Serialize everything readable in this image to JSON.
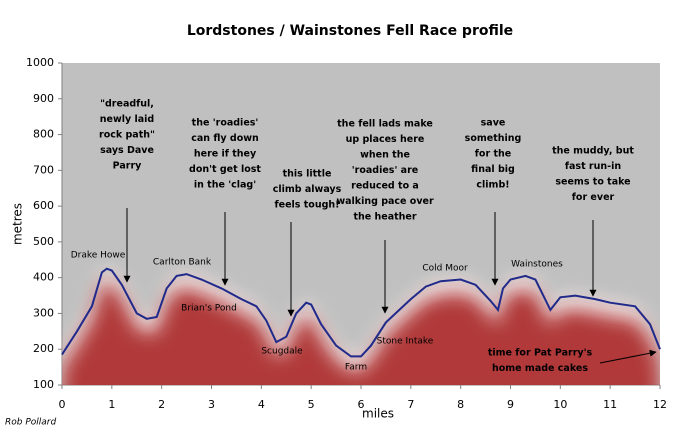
{
  "chart_data": {
    "type": "area",
    "title": "Lordstones / Wainstones Fell Race profile",
    "xlabel": "miles",
    "ylabel": "metres",
    "credit": "Rob Pollard",
    "x": [
      0,
      0.3,
      0.6,
      0.8,
      0.9,
      1.0,
      1.2,
      1.5,
      1.7,
      1.9,
      2.1,
      2.3,
      2.5,
      2.8,
      3.2,
      3.6,
      3.9,
      4.1,
      4.3,
      4.5,
      4.7,
      4.9,
      5.0,
      5.2,
      5.5,
      5.8,
      6.0,
      6.2,
      6.5,
      7.0,
      7.3,
      7.6,
      8.0,
      8.3,
      8.6,
      8.75,
      8.85,
      9.0,
      9.3,
      9.5,
      9.8,
      10.0,
      10.3,
      10.7,
      11.0,
      11.5,
      11.8,
      12.0
    ],
    "values": [
      185,
      250,
      320,
      415,
      425,
      420,
      380,
      300,
      285,
      290,
      370,
      405,
      410,
      395,
      370,
      340,
      320,
      280,
      220,
      235,
      300,
      330,
      325,
      270,
      210,
      180,
      180,
      210,
      275,
      340,
      375,
      390,
      395,
      380,
      335,
      310,
      370,
      395,
      405,
      395,
      310,
      345,
      350,
      340,
      330,
      320,
      270,
      200
    ],
    "color": "#1f2a8a",
    "xlim": [
      0,
      12
    ],
    "ylim": [
      100,
      1000
    ],
    "xticks": [
      0,
      1,
      2,
      3,
      4,
      5,
      6,
      7,
      8,
      9,
      10,
      11,
      12
    ],
    "yticks": [
      100,
      200,
      300,
      400,
      500,
      600,
      700,
      800,
      900,
      1000
    ],
    "places": [
      "Drake Howe",
      "Carlton Bank",
      "Brian's Pond",
      "Scugdale",
      "Farm",
      "Stone Intake",
      "Cold Moor",
      "Wainstones"
    ],
    "annotations": [
      [
        "\"dreadful,",
        "newly laid",
        "rock path\"",
        "says Dave",
        "Parry"
      ],
      [
        "the 'roadies'",
        "can fly down",
        "here if they",
        "don't get lost",
        "in the 'clag'"
      ],
      [
        "this little",
        "climb always",
        "feels tough!"
      ],
      [
        "the fell lads make",
        "up places here",
        "when the",
        "'roadies' are",
        "reduced to a",
        "walking pace over",
        "the heather"
      ],
      [
        "save",
        "something",
        "for the",
        "final big",
        "climb!"
      ],
      [
        "the muddy, but",
        "fast run-in",
        "seems to take",
        "for ever"
      ],
      [
        "time for Pat Parry's",
        "home made cakes"
      ]
    ]
  }
}
